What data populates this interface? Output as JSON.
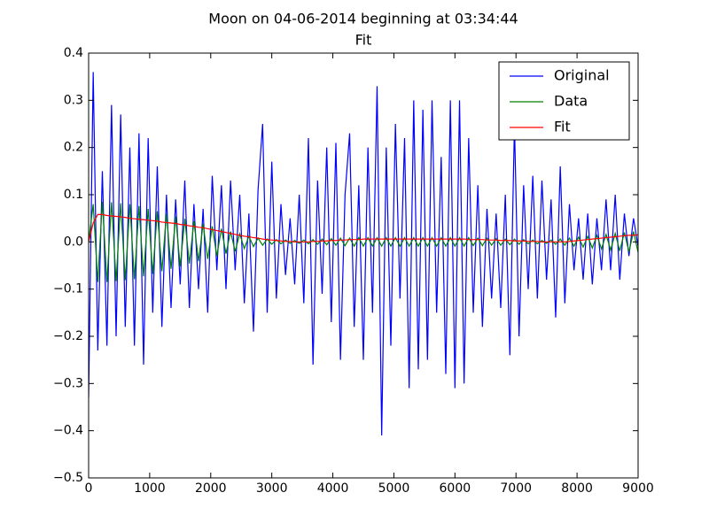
{
  "chart_data": {
    "type": "line",
    "title": "Moon on 04-06-2014 beginning at 03:34:44",
    "subtitle": "Fit",
    "x": [
      0,
      75,
      150,
      225,
      300,
      375,
      450,
      525,
      600,
      675,
      750,
      825,
      900,
      975,
      1050,
      1125,
      1200,
      1275,
      1350,
      1425,
      1500,
      1575,
      1650,
      1725,
      1800,
      1875,
      1950,
      2025,
      2100,
      2175,
      2250,
      2325,
      2400,
      2475,
      2550,
      2625,
      2700,
      2775,
      2850,
      2925,
      3000,
      3075,
      3150,
      3225,
      3300,
      3375,
      3450,
      3525,
      3600,
      3675,
      3750,
      3825,
      3900,
      3975,
      4050,
      4125,
      4200,
      4275,
      4350,
      4425,
      4500,
      4575,
      4650,
      4725,
      4800,
      4875,
      4950,
      5025,
      5100,
      5175,
      5250,
      5325,
      5400,
      5475,
      5550,
      5625,
      5700,
      5775,
      5850,
      5925,
      6000,
      6075,
      6150,
      6225,
      6300,
      6375,
      6450,
      6525,
      6600,
      6675,
      6750,
      6825,
      6900,
      6975,
      7050,
      7125,
      7200,
      7275,
      7350,
      7425,
      7500,
      7575,
      7650,
      7725,
      7800,
      7875,
      7950,
      8025,
      8100,
      8175,
      8250,
      8325,
      8400,
      8475,
      8550,
      8625,
      8700,
      8775,
      8850,
      8925,
      9000
    ],
    "series": [
      {
        "name": "Original",
        "color": "#0000ff",
        "values": [
          -0.33,
          0.36,
          -0.23,
          0.15,
          -0.22,
          0.29,
          -0.2,
          0.27,
          -0.18,
          0.2,
          -0.22,
          0.23,
          -0.26,
          0.22,
          -0.15,
          0.16,
          -0.18,
          0.1,
          -0.14,
          0.09,
          -0.09,
          0.13,
          -0.14,
          0.08,
          -0.1,
          0.07,
          -0.15,
          0.14,
          -0.06,
          0.12,
          -0.1,
          0.13,
          -0.06,
          0.1,
          -0.13,
          0.06,
          -0.19,
          0.11,
          0.25,
          -0.15,
          0.17,
          -0.12,
          0.08,
          -0.07,
          0.05,
          -0.09,
          0.1,
          -0.13,
          0.22,
          -0.26,
          0.13,
          -0.11,
          0.2,
          -0.17,
          0.21,
          -0.25,
          0.1,
          0.23,
          -0.18,
          0.12,
          -0.25,
          0.2,
          -0.15,
          0.33,
          -0.41,
          0.2,
          -0.22,
          0.25,
          -0.12,
          0.22,
          -0.31,
          0.3,
          -0.27,
          0.28,
          -0.25,
          0.3,
          -0.15,
          0.18,
          -0.28,
          0.3,
          -0.31,
          0.3,
          -0.3,
          0.22,
          -0.15,
          0.12,
          -0.18,
          0.07,
          -0.12,
          0.06,
          -0.14,
          0.1,
          -0.24,
          0.25,
          -0.2,
          0.12,
          -0.1,
          0.14,
          -0.12,
          0.13,
          -0.08,
          0.09,
          -0.16,
          0.16,
          -0.13,
          0.08,
          -0.06,
          0.05,
          -0.08,
          0.06,
          -0.09,
          0.05,
          -0.06,
          0.09,
          -0.06,
          0.1,
          -0.08,
          0.06,
          -0.03,
          0.05,
          -0.01
        ]
      },
      {
        "name": "Data",
        "color": "#008000",
        "values": [
          0.0,
          0.08,
          -0.085,
          0.085,
          -0.085,
          0.084,
          -0.083,
          0.082,
          -0.081,
          0.08,
          -0.079,
          0.076,
          -0.073,
          0.07,
          -0.068,
          0.065,
          -0.062,
          0.06,
          -0.057,
          0.054,
          -0.052,
          0.049,
          -0.046,
          0.044,
          -0.041,
          0.038,
          -0.036,
          0.033,
          -0.03,
          0.028,
          -0.025,
          0.022,
          -0.02,
          0.017,
          -0.014,
          0.012,
          -0.01,
          0.008,
          -0.007,
          0.006,
          -0.005,
          0.005,
          -0.004,
          0.004,
          -0.003,
          0.003,
          -0.003,
          0.004,
          -0.004,
          0.005,
          -0.005,
          0.006,
          -0.006,
          0.007,
          -0.007,
          0.008,
          -0.008,
          0.008,
          -0.009,
          0.009,
          -0.009,
          0.009,
          -0.009,
          0.009,
          -0.009,
          0.009,
          -0.009,
          0.009,
          -0.009,
          0.009,
          -0.009,
          0.009,
          -0.009,
          0.009,
          -0.009,
          0.009,
          -0.009,
          0.009,
          -0.009,
          0.009,
          -0.009,
          0.009,
          -0.009,
          0.009,
          -0.008,
          0.008,
          -0.008,
          0.008,
          -0.007,
          0.007,
          -0.007,
          0.006,
          -0.006,
          0.006,
          -0.005,
          0.005,
          -0.004,
          0.004,
          -0.004,
          0.003,
          -0.003,
          0.004,
          -0.005,
          0.006,
          -0.007,
          0.008,
          -0.009,
          0.01,
          -0.011,
          0.012,
          -0.013,
          0.014,
          -0.015,
          0.016,
          -0.017,
          0.018,
          -0.019,
          0.02,
          -0.021,
          0.022,
          -0.022
        ]
      },
      {
        "name": "Fit",
        "color": "#ff0000",
        "values": [
          0,
          0.04,
          0.058,
          0.058,
          0.056,
          0.055,
          0.054,
          0.053,
          0.052,
          0.05,
          0.049,
          0.048,
          0.047,
          0.046,
          0.045,
          0.044,
          0.042,
          0.041,
          0.04,
          0.039,
          0.037,
          0.036,
          0.034,
          0.033,
          0.031,
          0.03,
          0.028,
          0.026,
          0.024,
          0.022,
          0.02,
          0.018,
          0.016,
          0.014,
          0.012,
          0.011,
          0.009,
          0.008,
          0.006,
          0.005,
          0.004,
          0.003,
          0.002,
          0.001,
          0.001,
          0.0,
          0.0,
          0.0,
          0.0,
          0.001,
          0.001,
          0.002,
          0.002,
          0.003,
          0.003,
          0.004,
          0.004,
          0.005,
          0.005,
          0.005,
          0.006,
          0.006,
          0.006,
          0.006,
          0.006,
          0.006,
          0.006,
          0.006,
          0.006,
          0.006,
          0.006,
          0.006,
          0.006,
          0.006,
          0.006,
          0.006,
          0.006,
          0.006,
          0.006,
          0.006,
          0.006,
          0.006,
          0.006,
          0.005,
          0.005,
          0.005,
          0.005,
          0.004,
          0.004,
          0.004,
          0.003,
          0.003,
          0.003,
          0.002,
          0.002,
          0.002,
          0.001,
          0.001,
          0.001,
          0.0,
          0.0,
          0.0,
          0.0,
          0.0,
          0.0,
          0.001,
          0.002,
          0.003,
          0.004,
          0.005,
          0.006,
          0.007,
          0.008,
          0.009,
          0.01,
          0.011,
          0.012,
          0.013,
          0.014,
          0.014,
          0.015
        ]
      }
    ],
    "xlim": [
      0,
      9000
    ],
    "xticks": [
      0,
      1000,
      2000,
      3000,
      4000,
      5000,
      6000,
      7000,
      8000,
      9000
    ],
    "ylim": [
      -0.5,
      0.4
    ],
    "yticks": [
      {
        "value": -0.5,
        "label": "−0.5"
      },
      {
        "value": -0.4,
        "label": "−0.4"
      },
      {
        "value": -0.3,
        "label": "−0.3"
      },
      {
        "value": -0.2,
        "label": "−0.2"
      },
      {
        "value": -0.1,
        "label": "−0.1"
      },
      {
        "value": 0,
        "label": "0.0"
      },
      0.1,
      0.2,
      0.3,
      0.4
    ],
    "grid": false,
    "legend": "upper right"
  }
}
